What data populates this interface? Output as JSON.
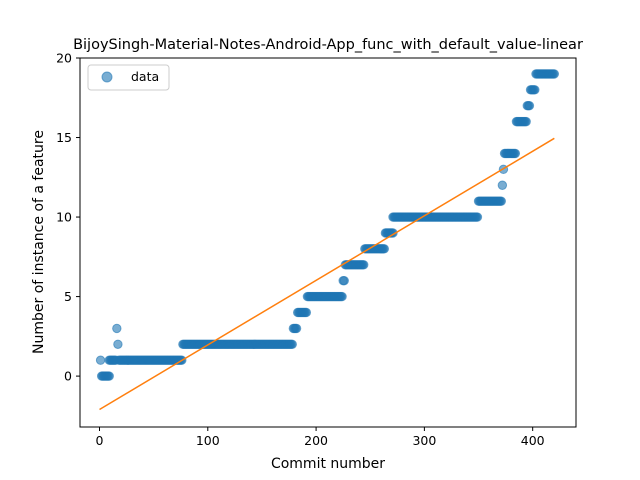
{
  "chart_data": {
    "type": "scatter",
    "title": "BijoySingh-Material-Notes-Android-App_func_with_default_value-linear",
    "xlabel": "Commit number",
    "ylabel": "Number of instance of a feature",
    "xlim": [
      -18,
      440
    ],
    "ylim": [
      -3.2,
      20
    ],
    "xticks": [
      0,
      100,
      200,
      300,
      400
    ],
    "yticks": [
      0,
      5,
      10,
      15,
      20
    ],
    "legend": {
      "position": "top-left",
      "entries": [
        "data"
      ]
    },
    "colors": {
      "data": "#1f77b4",
      "fit": "#ff7f0e"
    },
    "series": [
      {
        "name": "data",
        "kind": "scatter",
        "segments": [
          {
            "x_start": 1,
            "x_end": 1,
            "y": 1
          },
          {
            "x_start": 2,
            "x_end": 9,
            "y": 0
          },
          {
            "x_start": 9,
            "x_end": 15,
            "y": 1
          },
          {
            "x_start": 16,
            "x_end": 16,
            "y": 3
          },
          {
            "x_start": 17,
            "x_end": 17,
            "y": 2
          },
          {
            "x_start": 18,
            "x_end": 76,
            "y": 1
          },
          {
            "x_start": 77,
            "x_end": 178,
            "y": 2
          },
          {
            "x_start": 179,
            "x_end": 182,
            "y": 3
          },
          {
            "x_start": 183,
            "x_end": 191,
            "y": 4
          },
          {
            "x_start": 192,
            "x_end": 224,
            "y": 5
          },
          {
            "x_start": 225,
            "x_end": 226,
            "y": 6
          },
          {
            "x_start": 227,
            "x_end": 244,
            "y": 7
          },
          {
            "x_start": 245,
            "x_end": 263,
            "y": 8
          },
          {
            "x_start": 264,
            "x_end": 271,
            "y": 9
          },
          {
            "x_start": 271,
            "x_end": 349,
            "y": 10
          },
          {
            "x_start": 350,
            "x_end": 371,
            "y": 11
          },
          {
            "x_start": 372,
            "x_end": 372,
            "y": 12
          },
          {
            "x_start": 373,
            "x_end": 373,
            "y": 13
          },
          {
            "x_start": 374,
            "x_end": 384,
            "y": 14
          },
          {
            "x_start": 385,
            "x_end": 394,
            "y": 16
          },
          {
            "x_start": 395,
            "x_end": 397,
            "y": 17
          },
          {
            "x_start": 398,
            "x_end": 402,
            "y": 18
          },
          {
            "x_start": 403,
            "x_end": 420,
            "y": 19
          }
        ]
      },
      {
        "kind": "line",
        "x": [
          0,
          420
        ],
        "y": [
          -2.1,
          14.95
        ]
      }
    ]
  }
}
